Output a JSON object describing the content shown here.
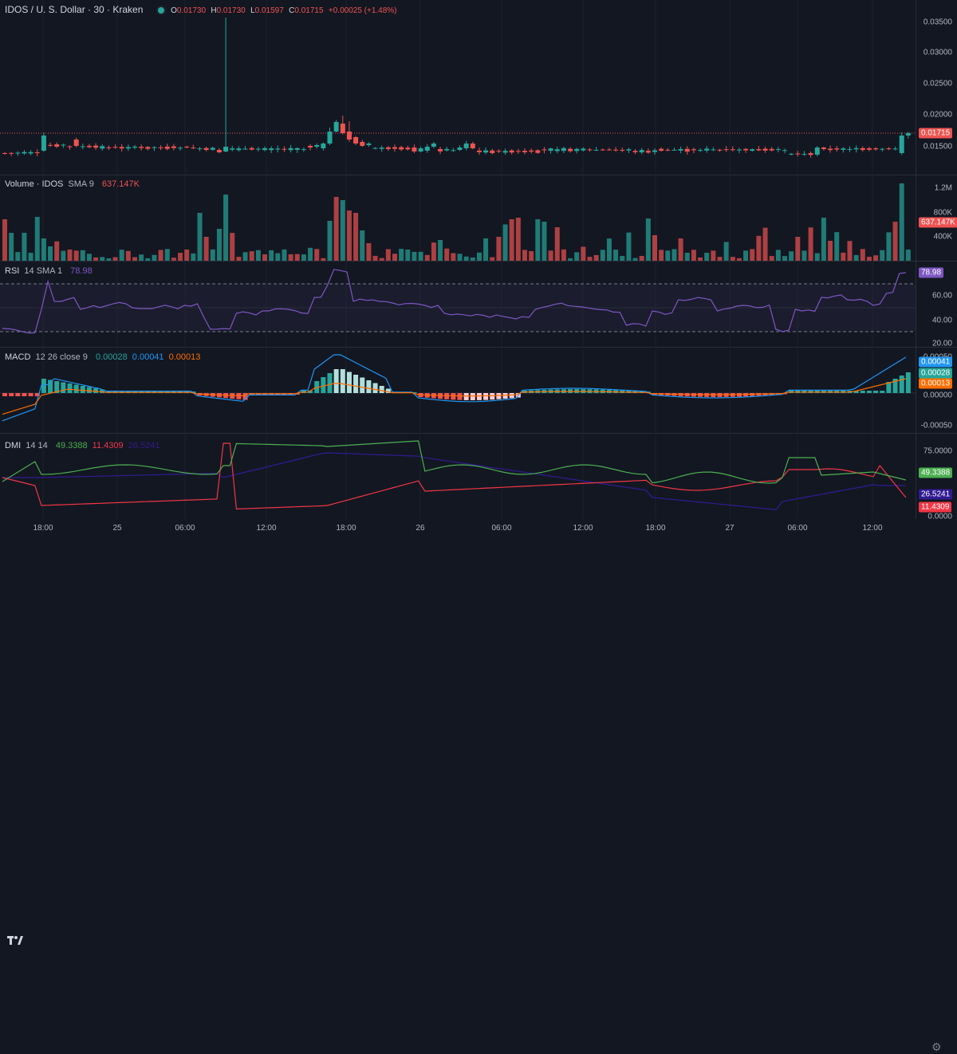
{
  "header": {
    "symbol": "IDOS / U. S. Dollar · 30 · Kraken",
    "o_label": "O",
    "o_value": "0.01730",
    "h_label": "H",
    "h_value": "0.01730",
    "l_label": "L",
    "l_value": "0.01597",
    "c_label": "C",
    "c_value": "0.01715",
    "change": "+0.00025 (+1.48%)"
  },
  "price_axis": {
    "ticks": [
      "0.03500",
      "0.03000",
      "0.02500",
      "0.02000",
      "0.01500"
    ],
    "last_price_tag": "0.01715"
  },
  "volume_legend": {
    "title": "Volume · IDOS",
    "params": "SMA 9",
    "value": "637.147K"
  },
  "volume_axis": {
    "ticks": [
      "1.2M",
      "800K",
      "400K"
    ],
    "tag": "637.147K"
  },
  "rsi_legend": {
    "title": "RSI",
    "params": "14 SMA 1",
    "value": "78.98"
  },
  "rsi_axis": {
    "ticks": [
      "60.00",
      "40.00",
      "20.00"
    ],
    "tag": "78.98"
  },
  "macd_legend": {
    "title": "MACD",
    "params": "12 26 close 9",
    "v1": "0.00028",
    "v2": "0.00041",
    "v3": "0.00013"
  },
  "macd_axis": {
    "ticks": [
      "0.00050",
      "0.00000",
      "-0.00050"
    ],
    "tags": [
      "0.00041",
      "0.00028",
      "0.00013"
    ]
  },
  "dmi_legend": {
    "title": "DMI",
    "params": "14 14",
    "v1": "49.3388",
    "v2": "11.4309",
    "v3": "26.5241"
  },
  "dmi_axis": {
    "ticks": [
      "75.0000",
      "0.0000"
    ],
    "tags": [
      "49.3388",
      "26.5241",
      "11.4309"
    ]
  },
  "time_axis": {
    "labels": [
      "18:00",
      "25",
      "06:00",
      "12:00",
      "18:00",
      "26",
      "06:00",
      "12:00",
      "18:00",
      "27",
      "06:00",
      "12:00"
    ]
  },
  "colors": {
    "up": "#26a69a",
    "down": "#ef5350",
    "rsi": "#7e57c2",
    "macd": "#2196f3",
    "signal": "#ff6d00",
    "dmi_plus": "#4caf50",
    "dmi_minus": "#f23645",
    "adx": "#311b92"
  },
  "icons": {
    "logo": "tradingview-logo-icon",
    "settings": "gear-icon",
    "visibility": "eye-icon"
  }
}
